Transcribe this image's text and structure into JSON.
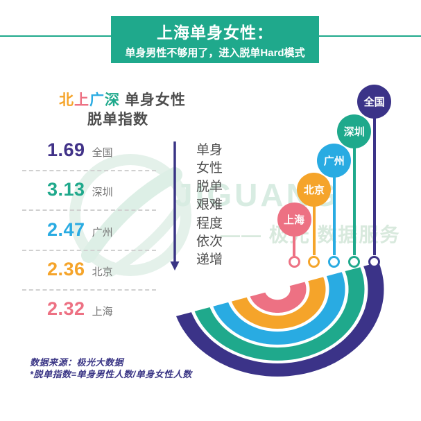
{
  "header": {
    "title_line1": "上海单身女性：",
    "title_line2": "单身男性不够用了，进入脱单Hard模式"
  },
  "heading": {
    "colored_chars": [
      {
        "char": "北",
        "color": "#f5a42a"
      },
      {
        "char": "上",
        "color": "#ed7183"
      },
      {
        "char": "广",
        "color": "#29abe2"
      },
      {
        "char": "深",
        "color": "#1fa98c"
      }
    ],
    "rest": " 单身女性",
    "line2": "脱单指数"
  },
  "index_list": [
    {
      "id": "national",
      "value": "1.69",
      "city": "全国",
      "color": "#413288"
    },
    {
      "id": "shenzhen",
      "value": "3.13",
      "city": "深圳",
      "color": "#1fa98c"
    },
    {
      "id": "guangzhou",
      "value": "2.47",
      "city": "广州",
      "color": "#29abe2"
    },
    {
      "id": "beijing",
      "value": "2.36",
      "city": "北京",
      "color": "#f5a42a"
    },
    {
      "id": "shanghai",
      "value": "2.32",
      "city": "上海",
      "color": "#ed7183"
    }
  ],
  "arrow_note": {
    "lines": [
      "单身",
      "女性",
      "脱单",
      "艰难",
      "程度",
      "依次",
      "递增"
    ]
  },
  "lollipops": [
    {
      "id": "shanghai",
      "city": "上海",
      "color": "#ed7183"
    },
    {
      "id": "beijing",
      "city": "北京",
      "color": "#f5a42a"
    },
    {
      "id": "guangzhou",
      "city": "广州",
      "color": "#29abe2"
    },
    {
      "id": "shenzhen",
      "city": "深圳",
      "color": "#1fa98c"
    },
    {
      "id": "national",
      "city": "全国",
      "color": "#3b3388"
    }
  ],
  "watermark": {
    "brand": "JIGUANG",
    "tagline": "—— 极光 数据服务"
  },
  "footer": {
    "source": "数据来源：极光大数据",
    "note": "*脱单指数=单身男性人数/单身女性人数"
  },
  "colors": {
    "accent_teal": "#1fa98c",
    "accent_purple": "#3b3388",
    "pink": "#ed7183",
    "orange": "#f5a42a",
    "blue": "#29abe2",
    "text_dark": "#4e4e4e",
    "text_gray": "#757575",
    "watermark_green": "#d8ece2"
  },
  "chart_data": {
    "type": "bar",
    "title": "北上广深 单身女性 脱单指数",
    "categories": [
      "全国",
      "深圳",
      "广州",
      "北京",
      "上海"
    ],
    "values": [
      1.69,
      3.13,
      2.47,
      2.36,
      2.32
    ],
    "series_label": "脱单指数",
    "annotation": "单身女性脱单艰难程度依次递增",
    "difficulty_order_low_to_high": [
      "上海",
      "北京",
      "广州",
      "深圳",
      "全国"
    ],
    "note": "*脱单指数=单身男性人数/单身女性人数",
    "source": "数据来源：极光大数据",
    "legend_position": "none",
    "grid": false
  }
}
